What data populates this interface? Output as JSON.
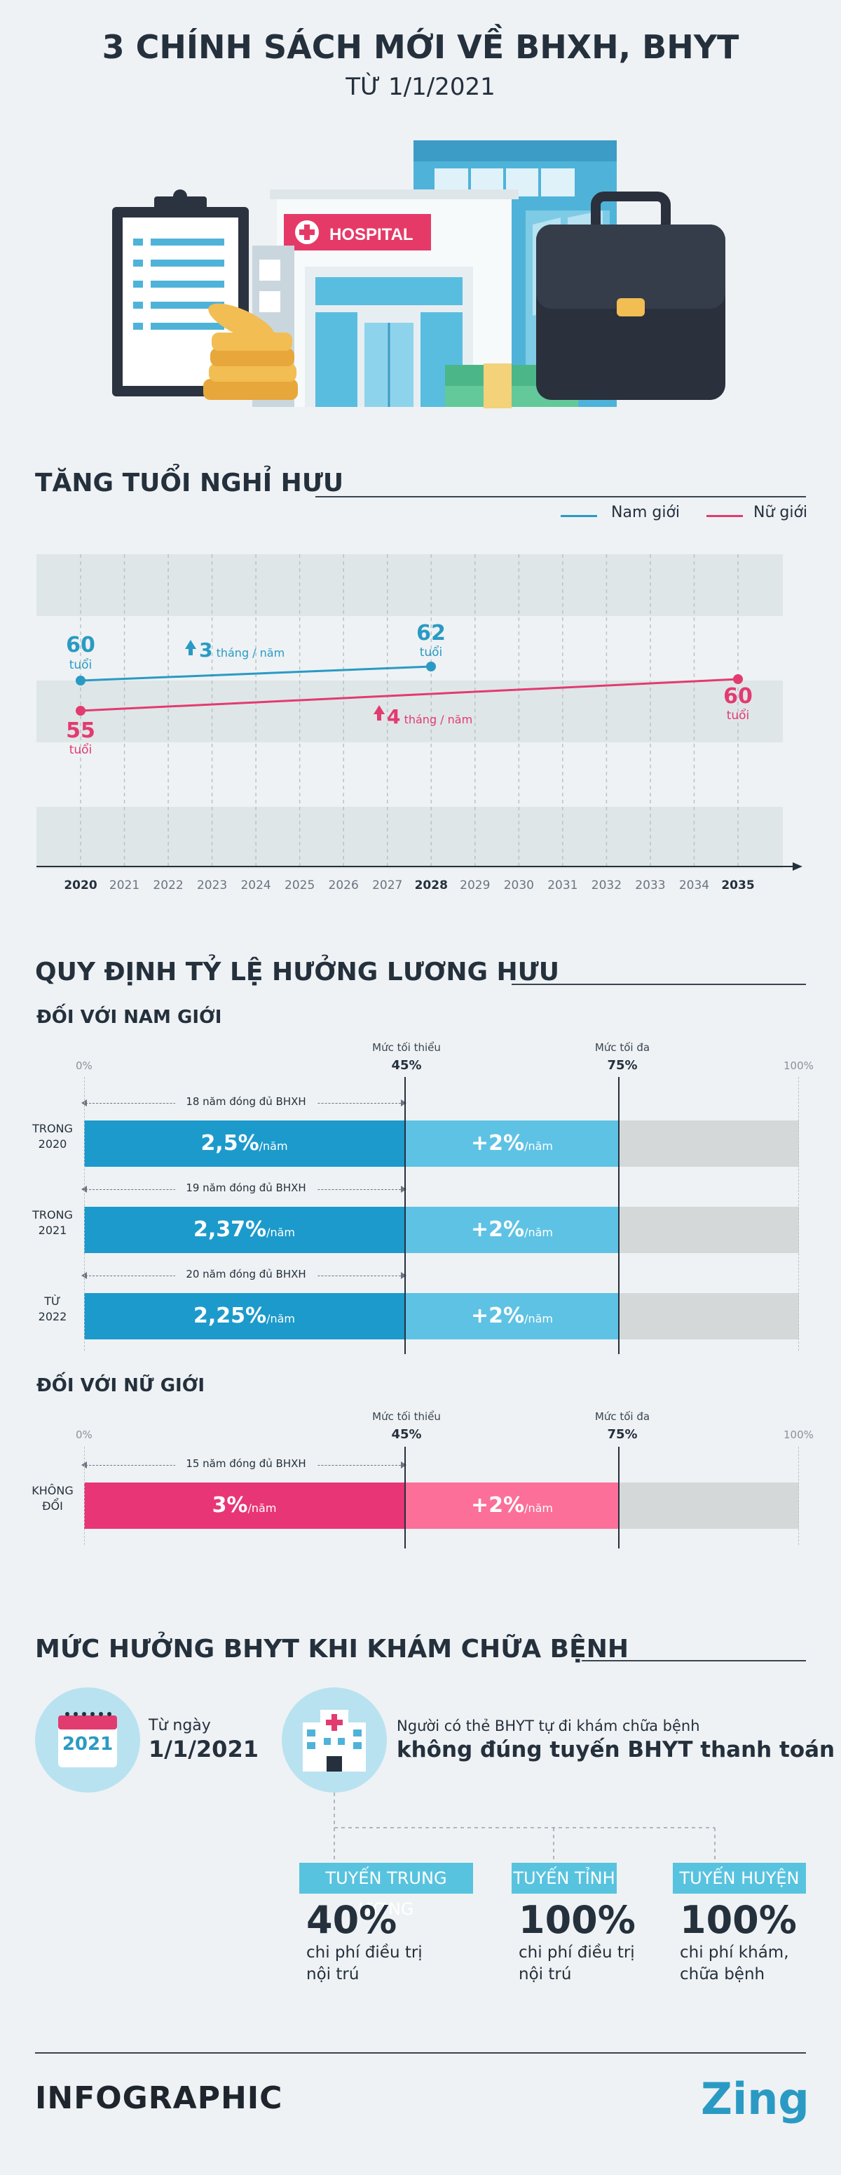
{
  "header": {
    "title": "3 CHÍNH SÁCH MỚI VỀ BHXH, BHYT",
    "subtitle": "TỪ 1/1/2021",
    "hospital_sign": "HOSPITAL"
  },
  "retirement": {
    "title": "TĂNG TUỔI NGHỈ HƯU",
    "legend": {
      "male": "Nam giới",
      "female": "Nữ giới"
    },
    "colors": {
      "male": "#2a9ac4",
      "female": "#e23b70"
    },
    "years": [
      "2020",
      "2021",
      "2022",
      "2023",
      "2024",
      "2025",
      "2026",
      "2027",
      "2028",
      "2029",
      "2030",
      "2031",
      "2032",
      "2033",
      "2034",
      "2035"
    ],
    "bold_years": [
      "2020",
      "2028",
      "2035"
    ],
    "male": {
      "start_value": "60",
      "start_unit": "tuổi",
      "end_value": "62",
      "end_unit": "tuổi",
      "step_value": "3",
      "step_unit": "tháng / năm"
    },
    "female": {
      "start_value": "55",
      "start_unit": "tuổi",
      "end_value": "60",
      "end_unit": "tuổi",
      "step_value": "4",
      "step_unit": "tháng / năm"
    }
  },
  "pension": {
    "title": "QUY ĐỊNH TỶ LỆ HƯỞNG LƯƠNG HƯU",
    "male_title": "ĐỐI VỚI NAM GIỚI",
    "female_title": "ĐỐI VỚI NỮ GIỚI",
    "scale": {
      "zero": "0%",
      "hundred": "100%"
    },
    "min": {
      "label": "Mức tối thiểu",
      "value": "45%"
    },
    "max": {
      "label": "Mức tối đa",
      "value": "75%"
    },
    "male_rows": [
      {
        "label_1": "TRONG",
        "label_2": "2020",
        "years_note": "18 năm đóng đủ BHXH",
        "base": "2,5%",
        "base_unit": "/năm",
        "extra": "+2%",
        "extra_unit": "/năm"
      },
      {
        "label_1": "TRONG",
        "label_2": "2021",
        "years_note": "19 năm đóng đủ BHXH",
        "base": "2,37%",
        "base_unit": "/năm",
        "extra": "+2%",
        "extra_unit": "/năm"
      },
      {
        "label_1": "TỪ",
        "label_2": "2022",
        "years_note": "20 năm đóng đủ BHXH",
        "base": "2,25%",
        "base_unit": "/năm",
        "extra": "+2%",
        "extra_unit": "/năm"
      }
    ],
    "female_rows": [
      {
        "label_1": "KHÔNG",
        "label_2": "ĐỔI",
        "years_note": "15 năm đóng đủ BHXH",
        "base": "3%",
        "base_unit": "/năm",
        "extra": "+2%",
        "extra_unit": "/năm"
      }
    ]
  },
  "insurance": {
    "title": "MỨC HƯỞNG BHYT KHI KHÁM CHỮA BỆNH",
    "calendar_year": "2021",
    "date_label": "Từ ngày",
    "date_value": "1/1/2021",
    "desc_line1": "Người có thẻ BHYT tự đi khám chữa bệnh",
    "desc_line2": "không đúng tuyến BHYT thanh toán",
    "levels": [
      {
        "tag": "TUYẾN TRUNG ƯƠNG",
        "percent": "40%",
        "desc_1": "chi phí điều trị",
        "desc_2": "nội trú"
      },
      {
        "tag": "TUYẾN TỈNH",
        "percent": "100%",
        "desc_1": "chi phí điều trị",
        "desc_2": "nội trú"
      },
      {
        "tag": "TUYẾN HUYỆN",
        "percent": "100%",
        "desc_1": "chi phí khám,",
        "desc_2": "chữa bệnh"
      }
    ]
  },
  "footer": {
    "brand": "INFOGRAPHIC",
    "logo": "Zing"
  }
}
